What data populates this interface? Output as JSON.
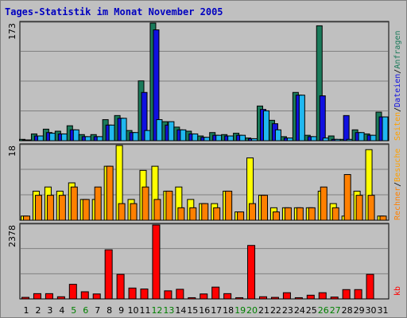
{
  "title": "Tages-Statistik im Monat November 2005",
  "chart_data": [
    {
      "type": "bar",
      "panel": "top",
      "ymax_label": "173",
      "ylim": [
        0,
        173
      ],
      "categories": [
        "1",
        "2",
        "3",
        "4",
        "5",
        "6",
        "7",
        "8",
        "9",
        "10",
        "11",
        "12",
        "13",
        "14",
        "15",
        "16",
        "17",
        "18",
        "19",
        "20",
        "21",
        "22",
        "23",
        "24",
        "25",
        "26",
        "27",
        "28",
        "29",
        "30",
        "31"
      ],
      "series": [
        {
          "name": "Anfragen",
          "color": "#1a7a5a",
          "values": [
            2,
            10,
            17,
            14,
            22,
            9,
            9,
            31,
            37,
            15,
            88,
            173,
            28,
            20,
            14,
            7,
            12,
            9,
            11,
            4,
            51,
            30,
            6,
            71,
            8,
            169,
            7,
            2,
            16,
            10,
            42
          ]
        },
        {
          "name": "Dateien",
          "color": "#1010e0",
          "values": [
            1,
            7,
            12,
            10,
            16,
            6,
            6,
            23,
            33,
            12,
            71,
            163,
            23,
            16,
            10,
            5,
            8,
            7,
            8,
            3,
            46,
            25,
            4,
            67,
            6,
            66,
            2,
            37,
            12,
            8,
            35
          ]
        },
        {
          "name": "Seiten",
          "color": "#20b8f0",
          "values": [
            1,
            7,
            11,
            10,
            16,
            6,
            6,
            23,
            33,
            12,
            15,
            31,
            28,
            16,
            10,
            5,
            8,
            7,
            8,
            3,
            44,
            16,
            4,
            67,
            6,
            4,
            2,
            2,
            12,
            8,
            35
          ]
        }
      ],
      "side_label_order": [
        "Seiten",
        "/",
        "Dateien",
        "/",
        "Anfragen"
      ],
      "side_label_colors": [
        "#ffa000",
        "#000000",
        "#1010e0",
        "#000000",
        "#1a7a5a"
      ]
    },
    {
      "type": "bar",
      "panel": "middle",
      "ymax_label": "18",
      "ylim": [
        0,
        18
      ],
      "categories": [
        "1",
        "2",
        "3",
        "4",
        "5",
        "6",
        "7",
        "8",
        "9",
        "10",
        "11",
        "12",
        "13",
        "14",
        "15",
        "16",
        "17",
        "18",
        "19",
        "20",
        "21",
        "22",
        "23",
        "24",
        "25",
        "26",
        "27",
        "28",
        "29",
        "30",
        "31"
      ],
      "series": [
        {
          "name": "Besuche",
          "color": "#ffff00",
          "values": [
            1,
            7,
            8,
            7,
            9,
            5,
            5,
            13,
            18,
            5,
            12,
            13,
            7,
            8,
            5,
            4,
            4,
            7,
            2,
            15,
            6,
            3,
            3,
            3,
            3,
            7,
            4,
            1,
            7,
            17,
            1
          ]
        },
        {
          "name": "Rechner",
          "color": "#ff8000",
          "values": [
            1,
            6,
            6,
            6,
            8,
            5,
            8,
            13,
            4,
            4,
            8,
            5,
            7,
            3,
            3,
            4,
            3,
            7,
            2,
            4,
            6,
            2,
            3,
            3,
            3,
            8,
            3,
            11,
            6,
            6,
            1
          ]
        }
      ],
      "side_label_order": [
        "Rechner",
        "/",
        "Besuche"
      ],
      "side_label_colors": [
        "#ff8000",
        "#000000",
        "#ffa000"
      ]
    },
    {
      "type": "bar",
      "panel": "bottom",
      "ymax_label": "2378",
      "ylim": [
        0,
        2378
      ],
      "unit": "kb",
      "categories": [
        "1",
        "2",
        "3",
        "4",
        "5",
        "6",
        "7",
        "8",
        "9",
        "10",
        "11",
        "12",
        "13",
        "14",
        "15",
        "16",
        "17",
        "18",
        "19",
        "20",
        "21",
        "22",
        "23",
        "24",
        "25",
        "26",
        "27",
        "28",
        "29",
        "30",
        "31"
      ],
      "series": [
        {
          "name": "kb",
          "color": "#ff0000",
          "values": [
            50,
            170,
            170,
            70,
            470,
            230,
            160,
            1580,
            790,
            350,
            320,
            2378,
            260,
            310,
            40,
            160,
            380,
            170,
            40,
            1720,
            70,
            50,
            200,
            40,
            120,
            200,
            60,
            300,
            300,
            790,
            0
          ]
        }
      ],
      "side_label_order": [
        "kb"
      ],
      "side_label_colors": [
        "#ff0000"
      ]
    }
  ],
  "day_colors": {
    "weekend": "#008000",
    "weekday": "#000000"
  },
  "weekend_days": [
    "5",
    "6",
    "12",
    "13",
    "19",
    "20",
    "26",
    "27"
  ]
}
